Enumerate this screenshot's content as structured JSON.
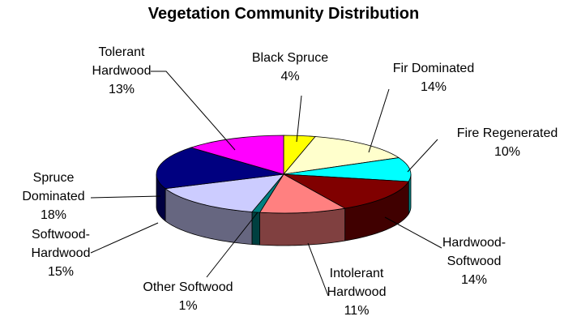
{
  "chart_data": {
    "type": "pie3d",
    "title": "Vegetation Community Distribution",
    "categories": [
      "Black Spruce",
      "Fir Dominated",
      "Fire Regenerated",
      "Hardwood-Softwood",
      "Intolerant Hardwood",
      "Other Softwood",
      "Softwood-Hardwood",
      "Spruce Dominated",
      "Tolerant Hardwood"
    ],
    "values": [
      4,
      14,
      10,
      14,
      11,
      1,
      15,
      18,
      13
    ],
    "value_labels": [
      "4%",
      "14%",
      "10%",
      "14%",
      "11%",
      "1%",
      "15%",
      "18%",
      "13%"
    ],
    "colors": [
      "#ffff00",
      "#ffffcc",
      "#00ffff",
      "#800000",
      "#ff8080",
      "#008080",
      "#ccccff",
      "#000080",
      "#ff00ff"
    ]
  }
}
